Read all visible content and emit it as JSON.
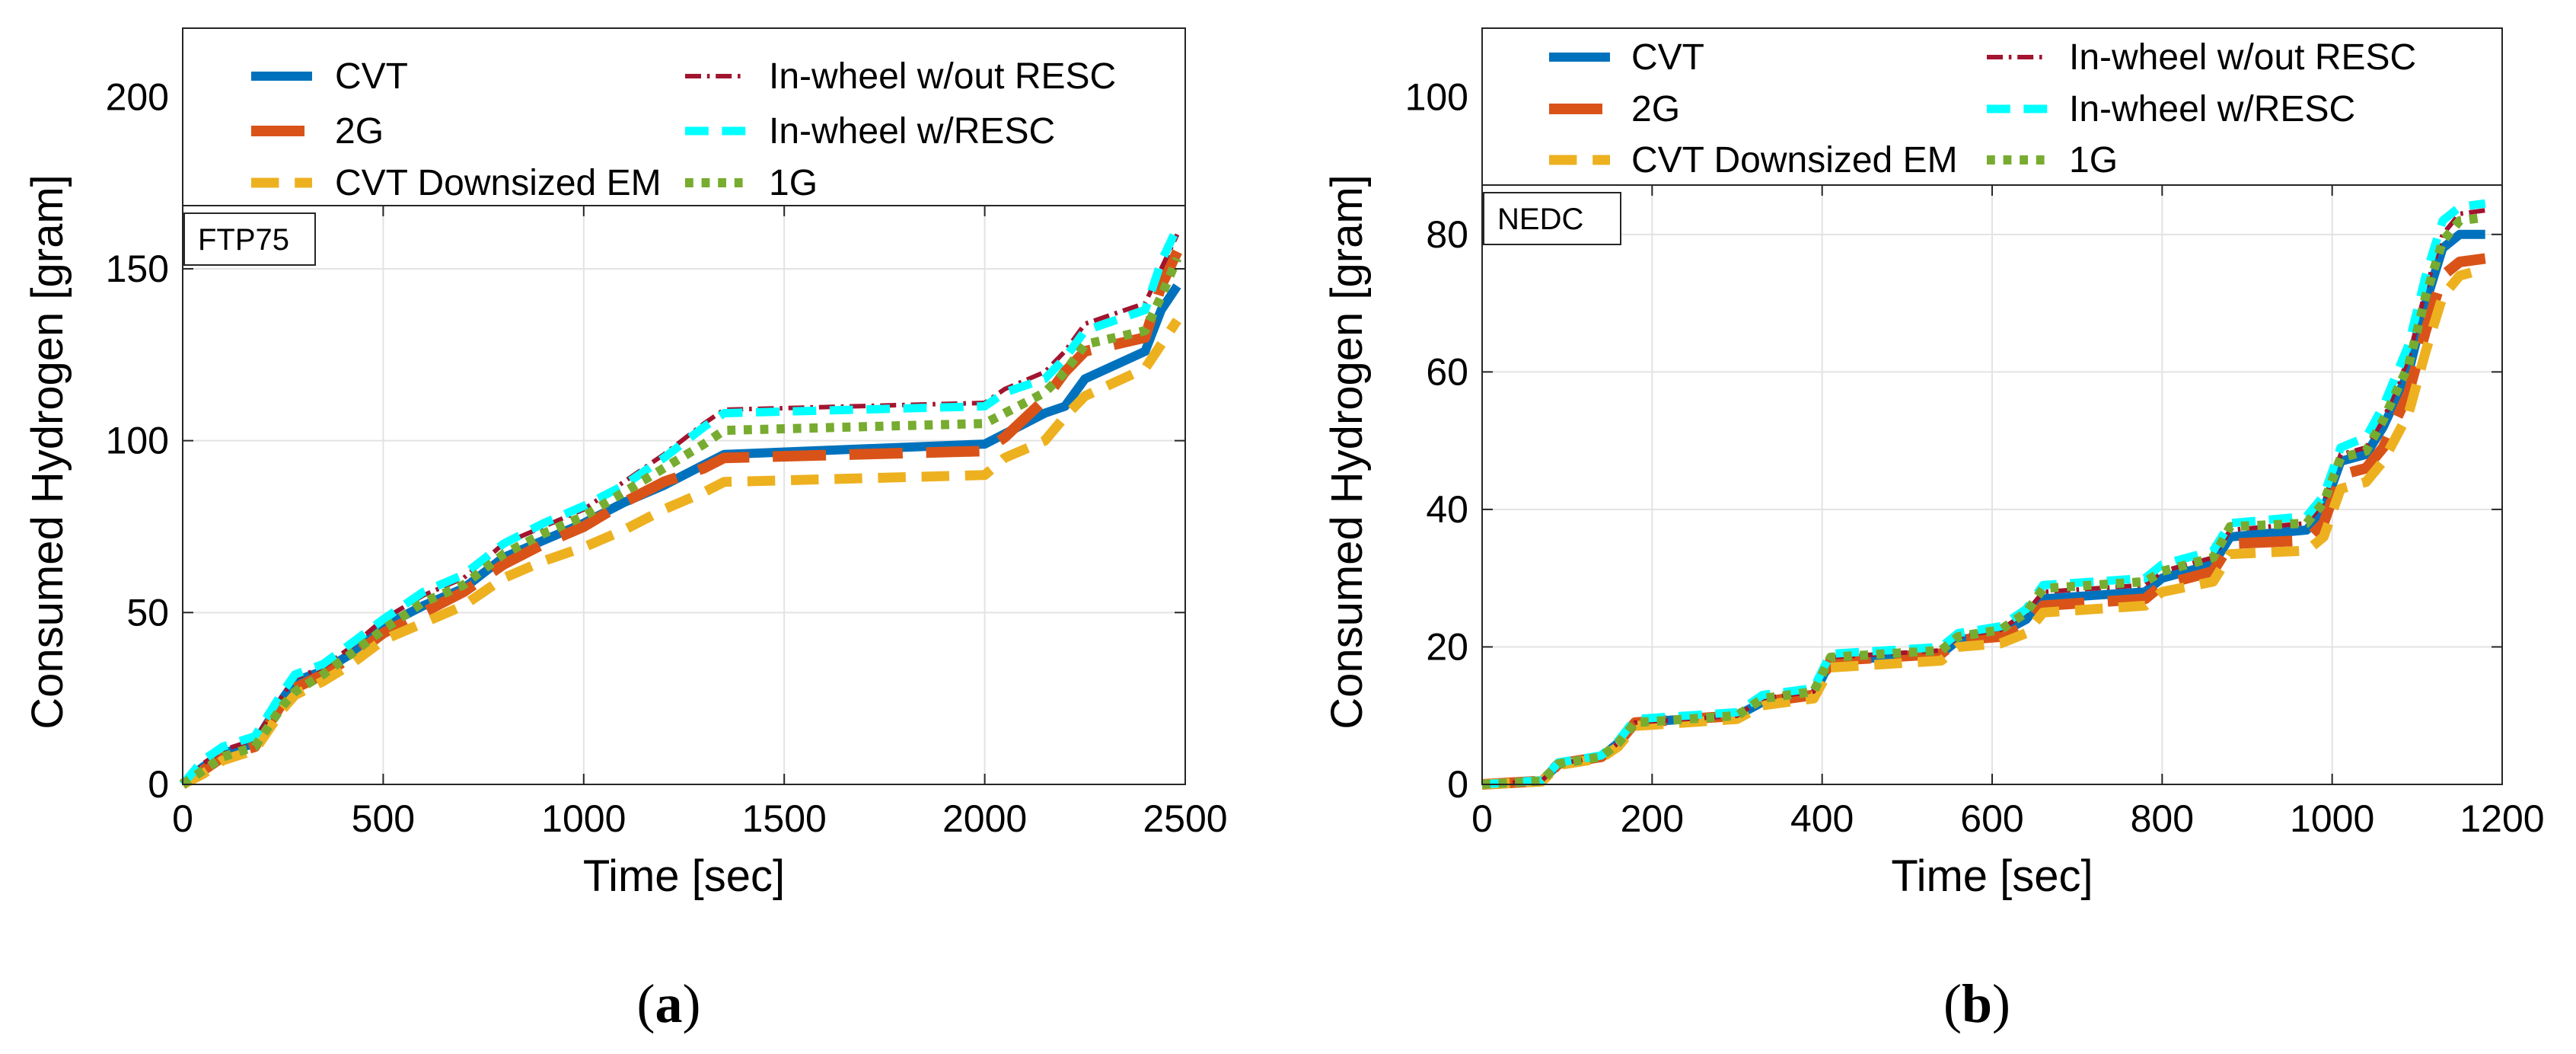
{
  "series_styles": [
    {
      "name": "CVT",
      "color": "#0072BD",
      "dash": "solid"
    },
    {
      "name": "2G",
      "color": "#D95319",
      "dash": "longdash"
    },
    {
      "name": "CVT Downsized EM",
      "color": "#EDB120",
      "dash": "dash"
    },
    {
      "name": "In-wheel w/out RESC",
      "color": "#A2142F",
      "dash": "dashdot"
    },
    {
      "name": "In-wheel w/RESC",
      "color": "#00FFFF",
      "dash": "dash"
    },
    {
      "name": "1G",
      "color": "#77AC30",
      "dash": "dot"
    }
  ],
  "chart_data": [
    {
      "type": "line",
      "caption": "a",
      "cycle_label": "FTP75",
      "xlabel": "Time [sec]",
      "ylabel": "Consumed Hydrogen [gram]",
      "xlim": [
        0,
        2500
      ],
      "ylim": [
        0,
        220
      ],
      "plot_ymax": 165,
      "xticks": [
        0,
        500,
        1000,
        1500,
        2000,
        2500
      ],
      "yticks": [
        0,
        50,
        100,
        150,
        200
      ],
      "grid": true,
      "legend_position": "top",
      "series": [
        {
          "name": "CVT",
          "x": [
            0,
            50,
            100,
            180,
            250,
            280,
            350,
            420,
            500,
            600,
            700,
            800,
            900,
            1000,
            1100,
            1200,
            1300,
            1350,
            2000,
            2050,
            2150,
            2200,
            2250,
            2400,
            2440,
            2480
          ],
          "y": [
            0,
            5,
            9,
            12,
            25,
            30,
            33,
            38,
            46,
            52,
            57,
            66,
            71,
            76,
            82,
            87,
            93,
            96,
            99,
            102,
            108,
            110,
            118,
            126,
            138,
            145
          ]
        },
        {
          "name": "2G",
          "x": [
            0,
            50,
            100,
            180,
            250,
            280,
            350,
            420,
            500,
            600,
            700,
            800,
            900,
            1000,
            1100,
            1200,
            1300,
            1350,
            2000,
            2050,
            2150,
            2200,
            2250,
            2400,
            2440,
            2480
          ],
          "y": [
            0,
            4,
            8,
            11,
            24,
            28,
            32,
            37,
            44,
            50,
            56,
            64,
            70,
            75,
            82,
            88,
            92,
            95,
            97,
            101,
            112,
            120,
            126,
            130,
            145,
            155
          ]
        },
        {
          "name": "CVT Downsized EM",
          "x": [
            0,
            50,
            100,
            180,
            250,
            280,
            350,
            420,
            500,
            600,
            700,
            800,
            900,
            1000,
            1100,
            1200,
            1300,
            1350,
            2000,
            2050,
            2150,
            2200,
            2250,
            2400,
            2440,
            2480
          ],
          "y": [
            0,
            3,
            7,
            10,
            22,
            26,
            30,
            35,
            42,
            47,
            52,
            60,
            65,
            69,
            74,
            80,
            85,
            88,
            90,
            95,
            100,
            107,
            113,
            121,
            128,
            135
          ]
        },
        {
          "name": "In-wheel w/out RESC",
          "x": [
            0,
            50,
            100,
            180,
            250,
            280,
            350,
            420,
            500,
            600,
            700,
            800,
            900,
            1000,
            1100,
            1200,
            1300,
            1350,
            2000,
            2050,
            2150,
            2200,
            2250,
            2400,
            2440,
            2480
          ],
          "y": [
            0,
            6,
            10,
            13,
            26,
            31,
            34,
            40,
            48,
            55,
            60,
            70,
            75,
            80,
            88,
            96,
            105,
            109,
            111,
            115,
            120,
            126,
            134,
            140,
            150,
            160
          ]
        },
        {
          "name": "In-wheel w/RESC",
          "x": [
            0,
            50,
            100,
            180,
            250,
            280,
            350,
            420,
            500,
            600,
            700,
            800,
            900,
            1000,
            1100,
            1200,
            1300,
            1350,
            2000,
            2050,
            2150,
            2200,
            2250,
            2400,
            2440,
            2480
          ],
          "y": [
            0,
            7,
            11,
            14,
            27,
            32,
            35,
            41,
            48,
            56,
            61,
            70,
            76,
            81,
            87,
            95,
            104,
            108,
            110,
            114,
            118,
            124,
            132,
            138,
            152,
            162
          ]
        },
        {
          "name": "1G",
          "x": [
            0,
            50,
            100,
            180,
            250,
            280,
            350,
            420,
            500,
            600,
            700,
            800,
            900,
            1000,
            1100,
            1200,
            1300,
            1350,
            2000,
            2050,
            2150,
            2200,
            2250,
            2400,
            2440,
            2480
          ],
          "y": [
            0,
            4,
            8,
            11,
            23,
            27,
            32,
            38,
            45,
            53,
            58,
            67,
            73,
            78,
            85,
            92,
            99,
            103,
            105,
            108,
            114,
            120,
            128,
            132,
            142,
            153
          ]
        }
      ]
    },
    {
      "type": "line",
      "caption": "b",
      "cycle_label": "NEDC",
      "xlabel": "Time [sec]",
      "ylabel": "Consumed Hydrogen [gram]",
      "xlim": [
        0,
        1200
      ],
      "ylim": [
        0,
        110
      ],
      "plot_ymax": 87,
      "xticks": [
        0,
        200,
        400,
        600,
        800,
        1000,
        1200
      ],
      "yticks": [
        0,
        20,
        40,
        60,
        80,
        100
      ],
      "grid": true,
      "legend_position": "top",
      "series": [
        {
          "name": "CVT",
          "x": [
            0,
            70,
            90,
            140,
            160,
            180,
            300,
            330,
            390,
            410,
            540,
            560,
            610,
            640,
            660,
            780,
            800,
            860,
            880,
            970,
            990,
            1010,
            1040,
            1060,
            1090,
            1110,
            1130,
            1150,
            1180
          ],
          "y": [
            0,
            0.5,
            3,
            4,
            6,
            9,
            10,
            12,
            13,
            18,
            19,
            21,
            22,
            24,
            27,
            28,
            30,
            32,
            36,
            37,
            40,
            47,
            48,
            52,
            60,
            70,
            78,
            80,
            80
          ]
        },
        {
          "name": "2G",
          "x": [
            0,
            70,
            90,
            140,
            160,
            180,
            300,
            330,
            390,
            410,
            540,
            560,
            610,
            640,
            660,
            780,
            800,
            860,
            880,
            970,
            990,
            1010,
            1040,
            1060,
            1090,
            1110,
            1130,
            1150,
            1180
          ],
          "y": [
            0,
            0.5,
            3,
            4,
            6,
            9,
            10,
            12,
            13,
            18,
            19,
            21,
            21.5,
            23,
            26,
            27,
            29,
            31,
            35,
            35.5,
            38,
            45,
            46,
            49,
            57,
            66,
            74,
            76,
            76.5
          ]
        },
        {
          "name": "CVT Downsized EM",
          "x": [
            0,
            70,
            90,
            140,
            160,
            180,
            300,
            330,
            390,
            410,
            540,
            560,
            610,
            640,
            660,
            780,
            800,
            860,
            880,
            970,
            990,
            1010,
            1040,
            1060,
            1090,
            1110,
            1130,
            1150,
            1180
          ],
          "y": [
            0,
            0.4,
            2.8,
            3.8,
            5.5,
            8.5,
            9.5,
            11.5,
            12.5,
            17,
            18,
            20,
            20.5,
            22,
            25,
            26,
            28,
            29.5,
            33.5,
            34,
            36,
            43,
            44,
            47,
            54,
            63,
            71,
            74,
            75
          ]
        },
        {
          "name": "In-wheel w/out RESC",
          "x": [
            0,
            70,
            90,
            140,
            160,
            180,
            300,
            330,
            390,
            410,
            540,
            560,
            610,
            640,
            660,
            780,
            800,
            860,
            880,
            970,
            990,
            1010,
            1040,
            1060,
            1090,
            1110,
            1130,
            1150,
            1180
          ],
          "y": [
            0,
            0.5,
            3,
            4,
            6,
            9,
            10,
            12.5,
            13.5,
            18.5,
            19.5,
            21.5,
            22.5,
            25,
            28,
            29,
            31,
            33,
            37,
            38,
            41,
            48,
            49,
            53,
            62,
            72,
            80,
            83,
            83.5
          ]
        },
        {
          "name": "In-wheel w/RESC",
          "x": [
            0,
            70,
            90,
            140,
            160,
            180,
            300,
            330,
            390,
            410,
            540,
            560,
            610,
            640,
            660,
            780,
            800,
            860,
            880,
            970,
            990,
            1010,
            1040,
            1060,
            1090,
            1110,
            1130,
            1150,
            1180
          ],
          "y": [
            0,
            0.6,
            3.2,
            4.2,
            6.3,
            9.5,
            10.5,
            13,
            14,
            19,
            20,
            22,
            23,
            25.5,
            29,
            30,
            32,
            34,
            38,
            39,
            42,
            49,
            50.5,
            55,
            64,
            74,
            82,
            84,
            84.5
          ]
        },
        {
          "name": "1G",
          "x": [
            0,
            70,
            90,
            140,
            160,
            180,
            300,
            330,
            390,
            410,
            540,
            560,
            610,
            640,
            660,
            780,
            800,
            860,
            880,
            970,
            990,
            1010,
            1040,
            1060,
            1090,
            1110,
            1130,
            1150,
            1180
          ],
          "y": [
            0,
            0.5,
            3,
            4,
            6,
            9,
            10,
            12.5,
            13.5,
            18.5,
            19.5,
            21.5,
            22.5,
            25,
            28.5,
            29.5,
            31,
            33,
            37.5,
            38,
            41,
            47.5,
            48.5,
            53,
            61,
            71,
            79,
            82,
            82.5
          ]
        }
      ]
    }
  ]
}
